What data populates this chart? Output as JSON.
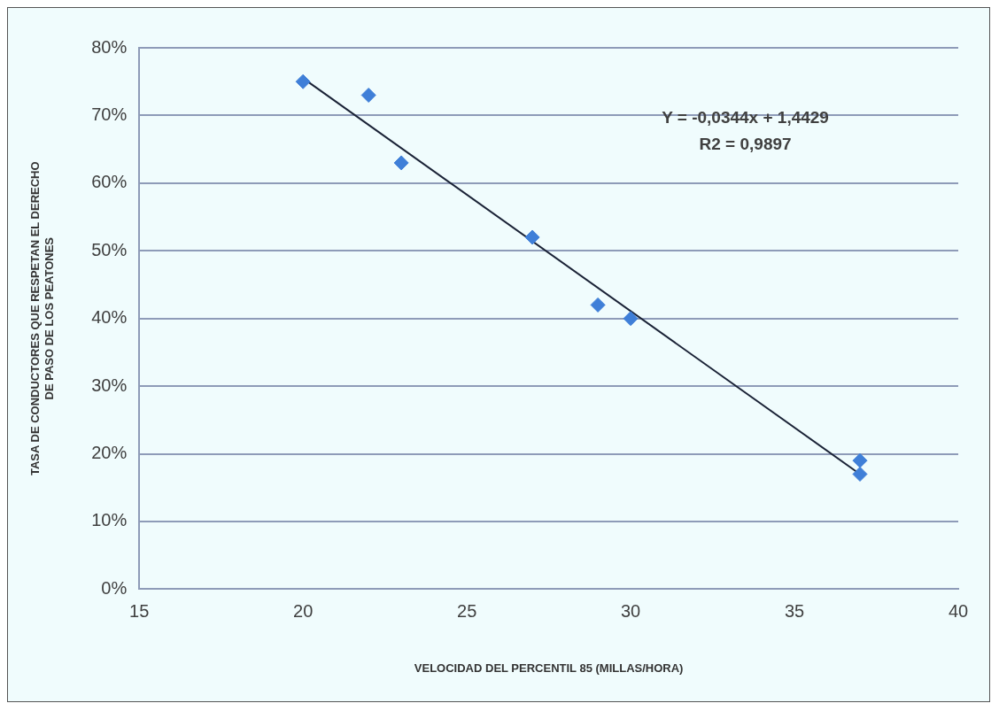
{
  "chart_data": {
    "type": "scatter",
    "xlabel": "VELOCIDAD DEL PERCENTIL 85 (MILLAS/HORA)",
    "ylabel": "TASA DE CONDUCTORES QUE RESPETAN EL DERECHO\nDE PASO DE LOS PEATONES",
    "xlim": [
      15,
      40
    ],
    "xticks": [
      15,
      20,
      25,
      30,
      35,
      40
    ],
    "ylim": [
      0,
      80
    ],
    "yticks": [
      {
        "value": 0,
        "label": "0%"
      },
      {
        "value": 10,
        "label": "10%"
      },
      {
        "value": 20,
        "label": "20%"
      },
      {
        "value": 30,
        "label": "30%"
      },
      {
        "value": 40,
        "label": "40%"
      },
      {
        "value": 50,
        "label": "50%"
      },
      {
        "value": 60,
        "label": "60%"
      },
      {
        "value": 70,
        "label": "70%"
      },
      {
        "value": 80,
        "label": "80%"
      }
    ],
    "grid": "y",
    "legend": false,
    "series": [
      {
        "color": "#3f7fd8",
        "marker": "diamond",
        "x": [
          20,
          22,
          23,
          27,
          29,
          30,
          37,
          37
        ],
        "values": [
          75,
          73,
          63,
          52,
          42,
          40,
          19,
          17
        ]
      },
      {
        "type": "line",
        "color": "#1a2236",
        "marker": "none",
        "line_style": "solid",
        "x": [
          20,
          37
        ],
        "values": [
          75.5,
          17.0
        ]
      }
    ],
    "annotations": [
      "Y = -0,0344x + 1,4429",
      "R2 = 0,9897"
    ]
  }
}
